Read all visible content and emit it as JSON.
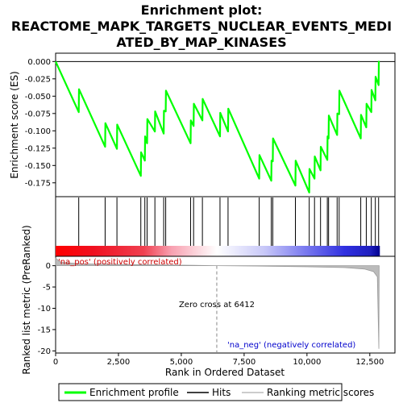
{
  "chart_data": {
    "type": "line",
    "title_lines": [
      "Enrichment plot:",
      "REACTOME_MAPK_TARGETS_NUCLEAR_EVENTS_MEDI",
      "ATED_BY_MAP_KINASES"
    ],
    "es_panel": {
      "ylabel": "Enrichment score (ES)",
      "ylim": [
        -0.195,
        0.012
      ],
      "yticks": [
        0.0,
        -0.025,
        -0.05,
        -0.075,
        -0.1,
        -0.125,
        -0.15,
        -0.175
      ],
      "ytick_labels": [
        "0.000",
        "-0.025",
        "-0.050",
        "-0.075",
        "-0.100",
        "-0.125",
        "-0.150",
        "-0.175"
      ],
      "series_name": "Enrichment profile",
      "color": "#00ff00",
      "x": [
        0,
        920,
        930,
        1970,
        1980,
        2440,
        2450,
        3390,
        3400,
        3550,
        3560,
        3640,
        3650,
        3950,
        3960,
        4300,
        4310,
        4380,
        4390,
        5370,
        5380,
        5490,
        5500,
        5840,
        5850,
        6540,
        6550,
        6860,
        6870,
        8100,
        8110,
        8580,
        8590,
        8640,
        8650,
        9540,
        9550,
        10090,
        10100,
        10300,
        10310,
        10540,
        10550,
        10810,
        10820,
        10860,
        10870,
        11200,
        11210,
        11280,
        11290,
        12140,
        12150,
        12360,
        12370,
        12560,
        12570,
        12720,
        12730,
        12850,
        12860
      ],
      "y": [
        0.0,
        -0.073,
        -0.04,
        -0.123,
        -0.089,
        -0.126,
        -0.091,
        -0.165,
        -0.131,
        -0.143,
        -0.108,
        -0.118,
        -0.083,
        -0.101,
        -0.072,
        -0.104,
        -0.071,
        -0.072,
        -0.042,
        -0.118,
        -0.085,
        -0.093,
        -0.061,
        -0.085,
        -0.054,
        -0.108,
        -0.074,
        -0.101,
        -0.068,
        -0.169,
        -0.135,
        -0.172,
        -0.143,
        -0.144,
        -0.111,
        -0.179,
        -0.143,
        -0.189,
        -0.155,
        -0.169,
        -0.137,
        -0.157,
        -0.123,
        -0.142,
        -0.108,
        -0.111,
        -0.078,
        -0.106,
        -0.075,
        -0.076,
        -0.042,
        -0.111,
        -0.077,
        -0.095,
        -0.061,
        -0.073,
        -0.041,
        -0.056,
        -0.022,
        -0.034,
        0.001
      ],
      "zero_line": 0.0
    },
    "hits_panel": {
      "hit_positions": [
        920,
        1970,
        2440,
        3390,
        3550,
        3640,
        3950,
        4300,
        4380,
        5370,
        5490,
        5840,
        6540,
        6860,
        8100,
        8580,
        8640,
        9540,
        10090,
        10300,
        10540,
        10810,
        10860,
        11200,
        11280,
        12140,
        12360,
        12560,
        12720,
        12850
      ],
      "heatmap_stops": [
        {
          "x": 0,
          "color": "#ff0000"
        },
        {
          "x": 1500,
          "color": "#f01020"
        },
        {
          "x": 3500,
          "color": "#f04050"
        },
        {
          "x": 4600,
          "color": "#f8a0b0"
        },
        {
          "x": 6412,
          "color": "#ffffff"
        },
        {
          "x": 8300,
          "color": "#c8c8f8"
        },
        {
          "x": 9800,
          "color": "#8080f0"
        },
        {
          "x": 11500,
          "color": "#3030e0"
        },
        {
          "x": 12500,
          "color": "#2020c0"
        },
        {
          "x": 12900,
          "color": "#000090"
        }
      ]
    },
    "metric_panel": {
      "ylabel": "Ranked list metric (PreRanked)",
      "ylim": [
        -20.5,
        2.2
      ],
      "yticks": [
        0,
        -5,
        -10,
        -15,
        -20
      ],
      "ytick_labels": [
        "0",
        "-5",
        "-10",
        "-15",
        "-20"
      ],
      "color": "#bbbbbb",
      "curve": [
        [
          0,
          1.8
        ],
        [
          200,
          0.8
        ],
        [
          1000,
          0.45
        ],
        [
          3000,
          0.25
        ],
        [
          5500,
          0.08
        ],
        [
          6412,
          0.0
        ],
        [
          8000,
          -0.1
        ],
        [
          10000,
          -0.25
        ],
        [
          11500,
          -0.45
        ],
        [
          12300,
          -0.8
        ],
        [
          12650,
          -1.4
        ],
        [
          12800,
          -2.6
        ],
        [
          12860,
          -19.5
        ],
        [
          12870,
          0.0
        ]
      ],
      "zero_cross": 6412,
      "zero_cross_label": "Zero cross at 6412",
      "pos_label": "'na_pos' (positively correlated)",
      "neg_label": "'na_neg' (negatively correlated)",
      "pos_color": "#cc0000",
      "neg_color": "#0000cc"
    },
    "xaxis": {
      "label": "Rank in Ordered Dataset",
      "xlim": [
        0,
        13500
      ],
      "xticks": [
        0,
        2500,
        5000,
        7500,
        10000,
        12500
      ],
      "xtick_labels": [
        "0",
        "2,500",
        "5,000",
        "7,500",
        "10,000",
        "12,500"
      ]
    },
    "legend": {
      "position": "bottom",
      "entries": [
        {
          "label": "Enrichment profile",
          "color": "#00ff00",
          "kind": "profile"
        },
        {
          "label": "Hits",
          "color": "#000000",
          "kind": "hits"
        },
        {
          "label": "Ranking metric scores",
          "color": "#bbbbbb",
          "kind": "metric"
        }
      ]
    }
  }
}
